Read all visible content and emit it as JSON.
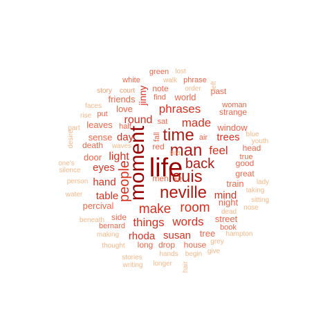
{
  "palette": {
    "darkest": "#990000",
    "dark": "#b11a12",
    "mid": "#d7301f",
    "light": "#ef6548",
    "lighter": "#f59a6b",
    "lightest": "#f5b889"
  },
  "words": [
    {
      "text": "life",
      "tone": "darkest"
    },
    {
      "text": "moment",
      "tone": "darkest"
    },
    {
      "text": "neville",
      "tone": "dark"
    },
    {
      "text": "louis",
      "tone": "dark"
    },
    {
      "text": "man",
      "tone": "dark"
    },
    {
      "text": "time",
      "tone": "dark"
    },
    {
      "text": "back",
      "tone": "dark"
    },
    {
      "text": "people",
      "tone": "mid"
    },
    {
      "text": "make",
      "tone": "mid"
    },
    {
      "text": "room",
      "tone": "mid"
    },
    {
      "text": "phrases",
      "tone": "mid"
    },
    {
      "text": "made",
      "tone": "mid"
    },
    {
      "text": "feel",
      "tone": "mid"
    },
    {
      "text": "things",
      "tone": "mid"
    },
    {
      "text": "words",
      "tone": "mid"
    },
    {
      "text": "light",
      "tone": "mid"
    },
    {
      "text": "round",
      "tone": "mid"
    },
    {
      "text": "jinny",
      "tone": "mid"
    },
    {
      "text": "trees",
      "tone": "mid"
    },
    {
      "text": "mind",
      "tone": "mid"
    },
    {
      "text": "eyes",
      "tone": "mid"
    },
    {
      "text": "hand",
      "tone": "mid"
    },
    {
      "text": "table",
      "tone": "mid"
    },
    {
      "text": "rhoda",
      "tone": "mid"
    },
    {
      "text": "susan",
      "tone": "mid"
    },
    {
      "text": "day",
      "tone": "mid"
    },
    {
      "text": "world",
      "tone": "light"
    },
    {
      "text": "window",
      "tone": "light"
    },
    {
      "text": "love",
      "tone": "light"
    },
    {
      "text": "friends",
      "tone": "light"
    },
    {
      "text": "sense",
      "tone": "light"
    },
    {
      "text": "leaves",
      "tone": "light"
    },
    {
      "text": "door",
      "tone": "light"
    },
    {
      "text": "percival",
      "tone": "light"
    },
    {
      "text": "night",
      "tone": "light"
    },
    {
      "text": "street",
      "tone": "light"
    },
    {
      "text": "good",
      "tone": "light"
    },
    {
      "text": "great",
      "tone": "light"
    },
    {
      "text": "train",
      "tone": "light"
    },
    {
      "text": "tree",
      "tone": "light"
    },
    {
      "text": "long",
      "tone": "light"
    },
    {
      "text": "drop",
      "tone": "light"
    },
    {
      "text": "house",
      "tone": "light"
    },
    {
      "text": "side",
      "tone": "light"
    },
    {
      "text": "bernard",
      "tone": "light"
    },
    {
      "text": "past",
      "tone": "light"
    },
    {
      "text": "strange",
      "tone": "light"
    },
    {
      "text": "woman",
      "tone": "light"
    },
    {
      "text": "head",
      "tone": "light"
    },
    {
      "text": "true",
      "tone": "light"
    },
    {
      "text": "death",
      "tone": "light"
    },
    {
      "text": "sat",
      "tone": "light"
    },
    {
      "text": "red",
      "tone": "light"
    },
    {
      "text": "men",
      "tone": "light"
    },
    {
      "text": "sit",
      "tone": "light"
    },
    {
      "text": "put",
      "tone": "light"
    },
    {
      "text": "half",
      "tone": "light"
    },
    {
      "text": "note",
      "tone": "light"
    },
    {
      "text": "find",
      "tone": "light"
    },
    {
      "text": "white",
      "tone": "light"
    },
    {
      "text": "green",
      "tone": "light"
    },
    {
      "text": "phrase",
      "tone": "light"
    },
    {
      "text": "book",
      "tone": "light"
    },
    {
      "text": "air",
      "tone": "light"
    },
    {
      "text": "fall",
      "tone": "light"
    },
    {
      "text": "court",
      "tone": "lighter"
    },
    {
      "text": "story",
      "tone": "lighter"
    },
    {
      "text": "lost",
      "tone": "lightest"
    },
    {
      "text": "walk",
      "tone": "lightest"
    },
    {
      "text": "order",
      "tone": "lightest"
    },
    {
      "text": "left",
      "tone": "lightest"
    },
    {
      "text": "faces",
      "tone": "lightest"
    },
    {
      "text": "rise",
      "tone": "lightest"
    },
    {
      "text": "part",
      "tone": "lightest"
    },
    {
      "text": "desire",
      "tone": "lightest"
    },
    {
      "text": "one's",
      "tone": "lightest"
    },
    {
      "text": "silence",
      "tone": "lightest"
    },
    {
      "text": "waves",
      "tone": "lightest"
    },
    {
      "text": "sea",
      "tone": "lightest"
    },
    {
      "text": "blue",
      "tone": "lightest"
    },
    {
      "text": "youth",
      "tone": "lightest"
    },
    {
      "text": "person",
      "tone": "lightest"
    },
    {
      "text": "water",
      "tone": "lightest"
    },
    {
      "text": "lady",
      "tone": "lightest"
    },
    {
      "text": "taking",
      "tone": "lightest"
    },
    {
      "text": "sitting",
      "tone": "lightest"
    },
    {
      "text": "nose",
      "tone": "lightest"
    },
    {
      "text": "dead",
      "tone": "lightest"
    },
    {
      "text": "beneath",
      "tone": "lightest"
    },
    {
      "text": "making",
      "tone": "lightest"
    },
    {
      "text": "hampton",
      "tone": "lightest"
    },
    {
      "text": "grey",
      "tone": "lightest"
    },
    {
      "text": "thought",
      "tone": "lightest"
    },
    {
      "text": "give",
      "tone": "lightest"
    },
    {
      "text": "hands",
      "tone": "lightest"
    },
    {
      "text": "begin",
      "tone": "lightest"
    },
    {
      "text": "stories",
      "tone": "lightest"
    },
    {
      "text": "writing",
      "tone": "lightest"
    },
    {
      "text": "longer",
      "tone": "lightest"
    },
    {
      "text": "hair",
      "tone": "lightest"
    }
  ]
}
